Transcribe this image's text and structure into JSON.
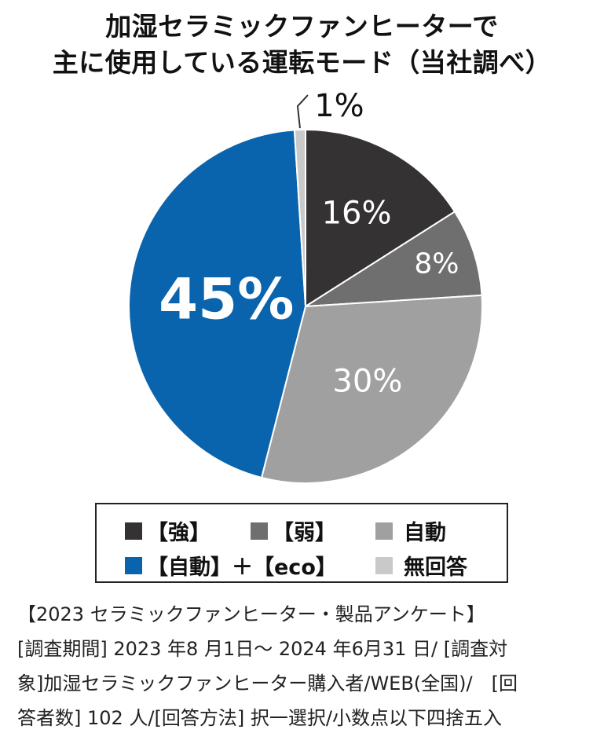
{
  "title": {
    "line1": "加湿セラミックファンヒーターで",
    "line2": "主に使用している運転モード（当社調べ）"
  },
  "chart_data": {
    "type": "pie",
    "slices": [
      {
        "name": "【強】",
        "value": 16,
        "label": "16%",
        "color": "#353233"
      },
      {
        "name": "【弱】",
        "value": 8,
        "label": "8%",
        "color": "#6f6f6f"
      },
      {
        "name": "自動",
        "value": 30,
        "label": "30%",
        "color": "#a0a0a0"
      },
      {
        "name": "【自動】＋【eco】",
        "value": 45,
        "label": "45%",
        "color": "#0a64ad"
      },
      {
        "name": "無回答",
        "value": 1,
        "label": "1%",
        "color": "#c9c9c9"
      }
    ]
  },
  "legend": {
    "items": [
      {
        "label": "【強】",
        "color": "#353233"
      },
      {
        "label": "【弱】",
        "color": "#6f6f6f"
      },
      {
        "label": "自動",
        "color": "#a0a0a0"
      },
      {
        "label": "【自動】＋【eco】",
        "color": "#0a64ad"
      },
      {
        "label": "無回答",
        "color": "#c9c9c9"
      }
    ]
  },
  "notes": {
    "line1": "【2023 セラミックファンヒーター・製品アンケート】",
    "line2": "[調査期間] 2023 年8 月1日～ 2024 年6月31 日/ [調査対",
    "line3": "象]加湿セラミックファンヒーター購入者/WEB(全国)/　[回",
    "line4": "答者数] 102 人/[回答方法] 択一選択/小数点以下四捨五入"
  }
}
